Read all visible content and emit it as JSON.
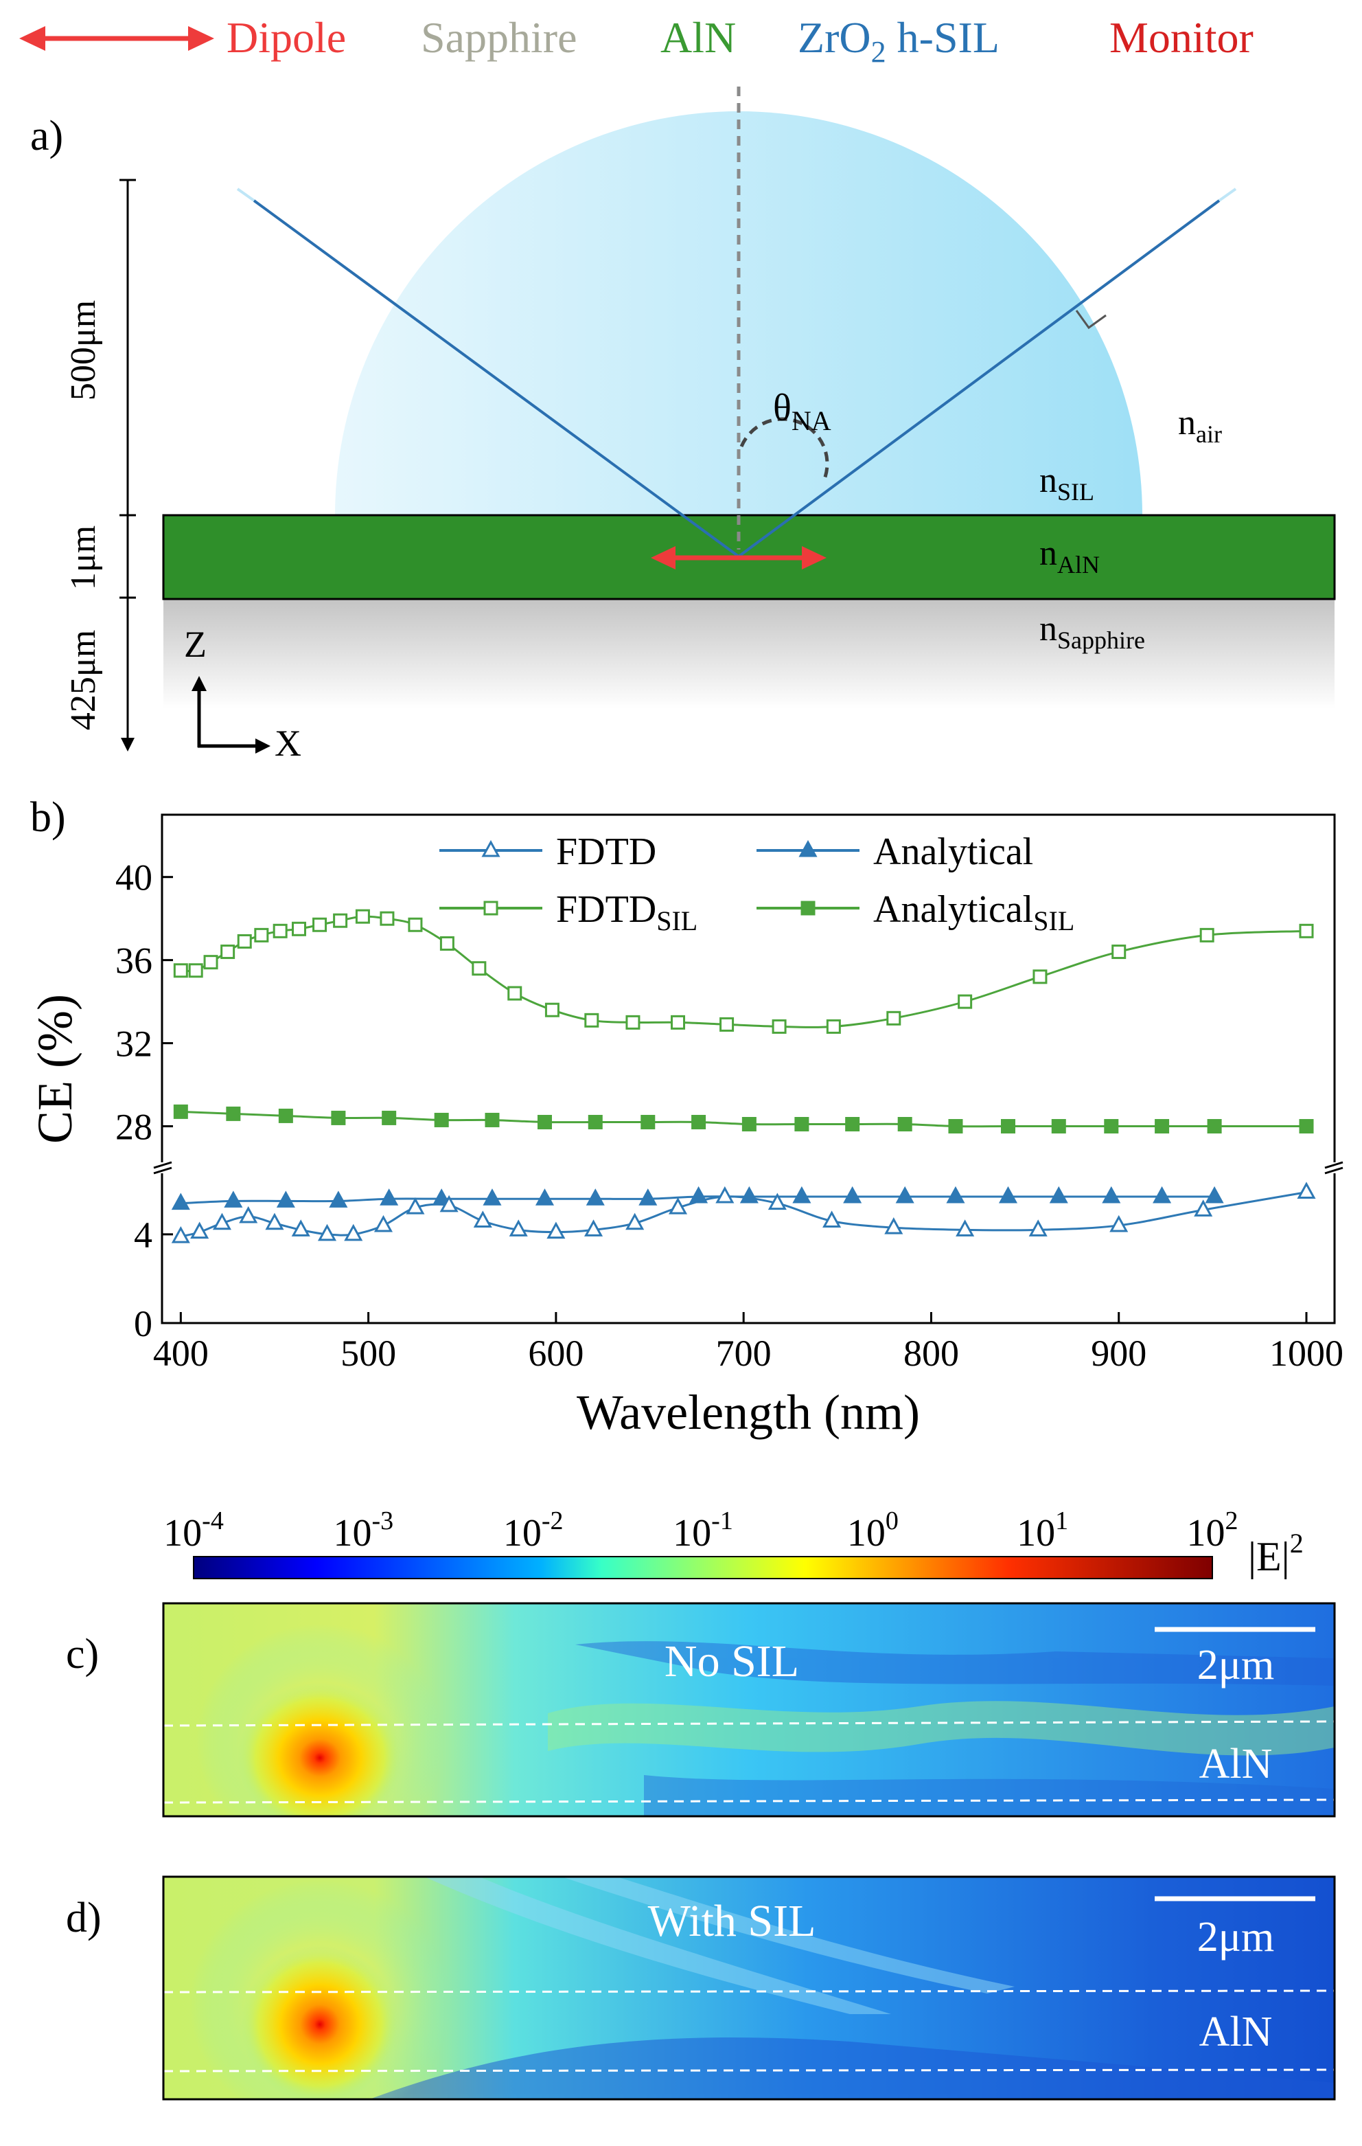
{
  "legend_top": {
    "dipole": "Dipole",
    "sapphire": "Sapphire",
    "aln": "AlN",
    "sil_base": "ZrO",
    "sil_sub": "2",
    "sil_rest": " h-SIL",
    "monitor": "Monitor"
  },
  "colors": {
    "dipole": "#ee3b3b",
    "sapphire": "#a7a99a",
    "aln": "#3a9a32",
    "sil": "#2a74b4",
    "monitor": "#d62020",
    "fdtd": "#2e79b5",
    "fdtd_sil": "#4ca53c",
    "aln_layer": "#2f8f2a",
    "sil_dome": "#aee4f6"
  },
  "panel_a": {
    "label": "a)",
    "dim_top": "500μm",
    "dim_mid": "1μm",
    "dim_bot": "425μm",
    "theta_base": "θ",
    "theta_sub": "NA",
    "n": "n",
    "air_sub": "air",
    "sil_sub": "SIL",
    "aln_sub": "AlN",
    "sapphire_sub": "Sapphire",
    "axis_z": "Z",
    "axis_x": "X"
  },
  "panel_b": {
    "label": "b)"
  },
  "chart_data": {
    "type": "line",
    "title": "",
    "xlabel": "Wavelength (nm)",
    "ylabel": "CE (%)",
    "xlim": [
      390,
      1015
    ],
    "x_ticks": [
      400,
      500,
      600,
      700,
      800,
      900,
      1000
    ],
    "y_ticks_lower": [
      0,
      4
    ],
    "y_ticks_upper": [
      28,
      32,
      36,
      40
    ],
    "y_break": [
      7,
      26
    ],
    "series": [
      {
        "name": "FDTD",
        "name_sub": "",
        "marker": "open-triangle",
        "color": "#2e79b5",
        "x": [
          400,
          410,
          422,
          436,
          450,
          464,
          478,
          492,
          508,
          525,
          543,
          561,
          580,
          600,
          620,
          642,
          665,
          690,
          718,
          747,
          780,
          818,
          857,
          900,
          945,
          1000
        ],
        "y": [
          3.9,
          4.1,
          4.5,
          4.8,
          4.5,
          4.2,
          4.0,
          4.0,
          4.4,
          5.2,
          5.3,
          4.6,
          4.2,
          4.1,
          4.2,
          4.5,
          5.2,
          5.7,
          5.4,
          4.6,
          4.3,
          4.2,
          4.2,
          4.4,
          5.1,
          5.9
        ]
      },
      {
        "name": "Analytical",
        "name_sub": "",
        "marker": "filled-triangle",
        "color": "#2e79b5",
        "x": [
          400,
          428,
          456,
          484,
          511,
          539,
          566,
          594,
          621,
          649,
          676,
          703,
          731,
          758,
          786,
          813,
          841,
          868,
          896,
          923,
          951
        ],
        "y": [
          5.4,
          5.5,
          5.5,
          5.5,
          5.6,
          5.6,
          5.6,
          5.6,
          5.6,
          5.6,
          5.7,
          5.7,
          5.7,
          5.7,
          5.7,
          5.7,
          5.7,
          5.7,
          5.7,
          5.7,
          5.7
        ]
      },
      {
        "name": "FDTD",
        "name_sub": "SIL",
        "marker": "open-square",
        "color": "#4ca53c",
        "x": [
          400,
          408,
          416,
          425,
          434,
          443,
          453,
          463,
          474,
          485,
          497,
          510,
          525,
          542,
          559,
          578,
          598,
          619,
          641,
          665,
          691,
          719,
          748,
          780,
          818,
          858,
          900,
          947,
          1000
        ],
        "y": [
          35.5,
          35.5,
          35.9,
          36.4,
          36.9,
          37.2,
          37.4,
          37.5,
          37.7,
          37.9,
          38.1,
          38.0,
          37.7,
          36.8,
          35.6,
          34.4,
          33.6,
          33.1,
          33.0,
          33.0,
          32.9,
          32.8,
          32.8,
          33.2,
          34.0,
          35.2,
          36.4,
          37.2,
          37.4
        ]
      },
      {
        "name": "Analytical",
        "name_sub": "SIL",
        "marker": "filled-square",
        "color": "#4ca53c",
        "x": [
          400,
          428,
          456,
          484,
          511,
          539,
          566,
          594,
          621,
          649,
          676,
          703,
          731,
          758,
          786,
          813,
          841,
          868,
          896,
          923,
          951,
          1000
        ],
        "y": [
          28.7,
          28.6,
          28.5,
          28.4,
          28.4,
          28.3,
          28.3,
          28.2,
          28.2,
          28.2,
          28.2,
          28.1,
          28.1,
          28.1,
          28.1,
          28.0,
          28.0,
          28.0,
          28.0,
          28.0,
          28.0,
          28.0
        ]
      }
    ],
    "legend_position": "top"
  },
  "colorbar": {
    "base": "10",
    "exponents": [
      "-4",
      "-3",
      "-2",
      "-1",
      "0",
      "1",
      "2"
    ],
    "quantity": "|E|",
    "quantity_exp": "2"
  },
  "panel_c": {
    "label": "c)",
    "title": "No SIL",
    "scale": "2μm",
    "layer": "AlN"
  },
  "panel_d": {
    "label": "d)",
    "title": "With SIL",
    "scale": "2μm",
    "layer": "AlN"
  }
}
